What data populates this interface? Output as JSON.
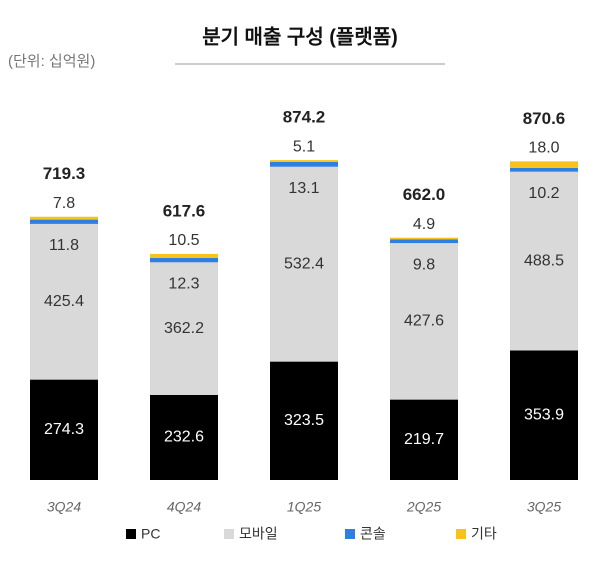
{
  "chart_data": {
    "type": "stacked-bar",
    "title": "분기 매출 구성 (플랫폼)",
    "unit_note": "(단위: 십억원)",
    "categories": [
      "3Q24",
      "4Q24",
      "1Q25",
      "2Q25",
      "3Q25"
    ],
    "series": [
      {
        "name": "PC",
        "color": "#000000",
        "values": [
          274.3,
          232.6,
          323.5,
          219.7,
          353.9
        ]
      },
      {
        "name": "모바일",
        "color": "#d9d9d9",
        "values": [
          425.4,
          362.2,
          532.4,
          427.6,
          488.5
        ]
      },
      {
        "name": "콘솔",
        "color": "#2f7fe0",
        "values": [
          11.8,
          12.3,
          13.1,
          9.8,
          10.2
        ]
      },
      {
        "name": "기타",
        "color": "#f7c31a",
        "values": [
          7.8,
          10.5,
          5.1,
          4.9,
          18.0
        ],
        "value_labels": [
          "7.8",
          "10.5",
          "5.1",
          "4.9",
          "18.0"
        ]
      }
    ],
    "total_labels": [
      "719.3",
      "617.6",
      "874.2",
      "662.0",
      "870.6"
    ]
  }
}
